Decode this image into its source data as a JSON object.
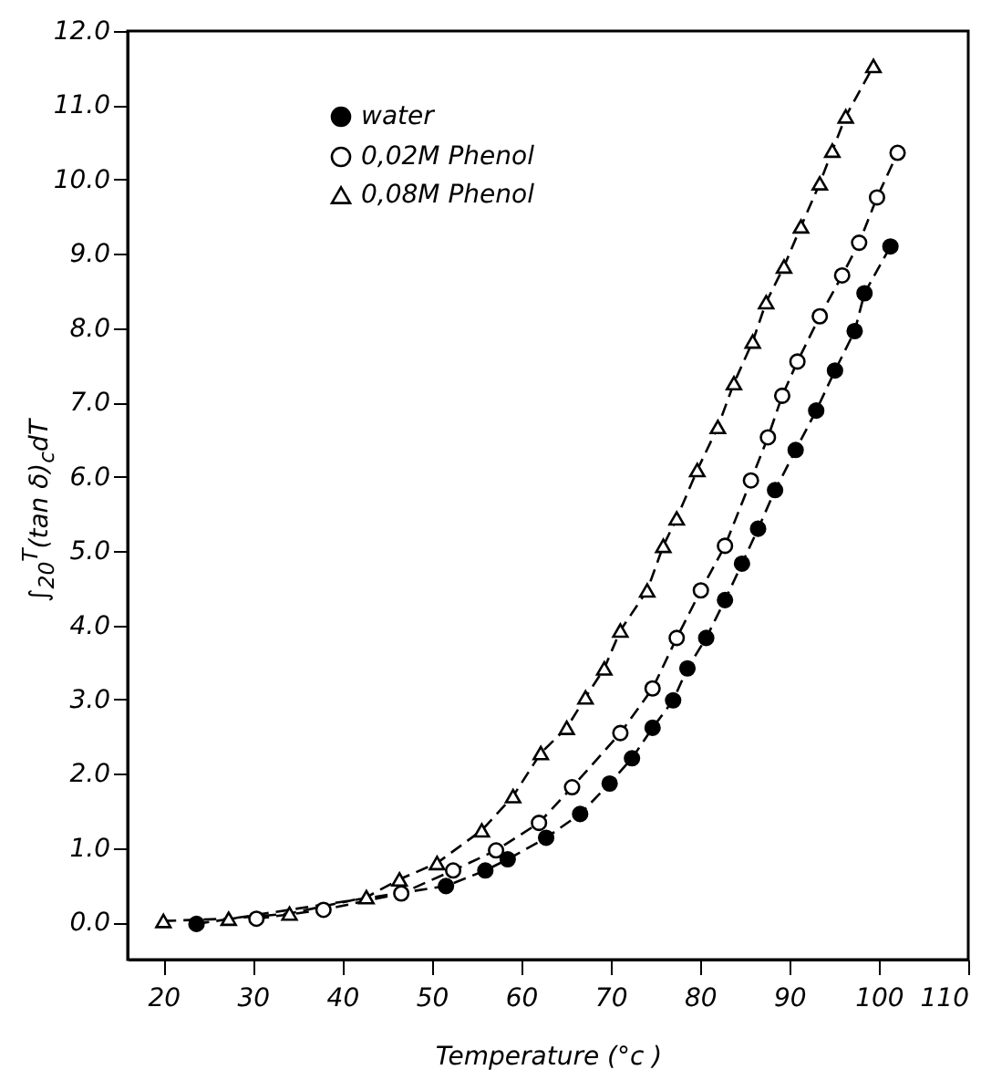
{
  "chart_data": {
    "type": "line",
    "xlabel": "Temperature (°c )",
    "ylabel": "∫$_{20}$$^{T}$(tan δ)$_{c}$dT",
    "xlim": [
      16,
      110
    ],
    "xticks": [
      20,
      30,
      40,
      50,
      60,
      70,
      80,
      90,
      100,
      110
    ],
    "ylim": [
      -0.5,
      12
    ],
    "yticks": [
      {
        "value": 0,
        "label": "0.0"
      },
      {
        "value": 1,
        "label": "1.0"
      },
      {
        "value": 2,
        "label": "2.0"
      },
      {
        "value": 3,
        "label": "3.0"
      },
      {
        "value": 4,
        "label": "4.0"
      },
      {
        "value": 5,
        "label": "5.0"
      },
      {
        "value": 6,
        "label": "6.0"
      },
      {
        "value": 7,
        "label": "7.0"
      },
      {
        "value": 8,
        "label": "8.0"
      },
      {
        "value": 9,
        "label": "9.0"
      },
      {
        "value": 10,
        "label": "10.0"
      },
      {
        "value": 11,
        "label": "11.0"
      },
      {
        "value": 12,
        "label": "12.0"
      }
    ],
    "grid": false,
    "legend": "top left",
    "line_style": "dashed",
    "series": [
      {
        "name": "water",
        "color": "#000000",
        "marker": "circle",
        "x": [
          23.7,
          51.6,
          56.0,
          58.5,
          62.8,
          66.6,
          69.9,
          72.4,
          74.7,
          77.0,
          78.6,
          80.7,
          82.8,
          84.7,
          86.5,
          88.4,
          90.7,
          93.0,
          95.1,
          97.3,
          98.4,
          101.3
        ],
        "values": [
          -0.02,
          0.49,
          0.7,
          0.85,
          1.14,
          1.46,
          1.87,
          2.21,
          2.62,
          2.99,
          3.42,
          3.83,
          4.34,
          4.83,
          5.3,
          5.82,
          6.36,
          6.89,
          7.43,
          7.96,
          8.47,
          9.1
        ]
      },
      {
        "name": "0,02M Phenol",
        "color": "#000000",
        "marker": "circle",
        "x": [
          30.4,
          37.9,
          46.6,
          52.4,
          57.2,
          62.0,
          65.7,
          71.1,
          74.7,
          77.4,
          80.1,
          82.8,
          85.7,
          87.6,
          89.2,
          90.9,
          93.4,
          95.9,
          97.8,
          99.8,
          102.1
        ],
        "values": [
          0.05,
          0.17,
          0.39,
          0.7,
          0.97,
          1.34,
          1.82,
          2.55,
          3.15,
          3.83,
          4.47,
          5.07,
          5.95,
          6.53,
          7.09,
          7.55,
          8.16,
          8.71,
          9.15,
          9.76,
          10.36
        ]
      },
      {
        "name": "0,08M Phenol",
        "color": "#000000",
        "marker": "triangle",
        "x": [
          20.0,
          27.3,
          34.1,
          42.7,
          46.4,
          50.6,
          55.6,
          59.1,
          62.2,
          65.1,
          67.2,
          69.3,
          71.1,
          74.1,
          75.9,
          77.4,
          79.7,
          82.0,
          83.8,
          85.9,
          87.4,
          89.4,
          91.3,
          93.4,
          94.8,
          96.3,
          99.4
        ],
        "values": [
          0.02,
          0.05,
          0.12,
          0.34,
          0.58,
          0.8,
          1.24,
          1.7,
          2.28,
          2.62,
          3.03,
          3.42,
          3.93,
          4.47,
          5.07,
          5.44,
          6.09,
          6.67,
          7.26,
          7.82,
          8.35,
          8.83,
          9.37,
          9.95,
          10.39,
          10.85,
          11.53
        ]
      }
    ]
  }
}
